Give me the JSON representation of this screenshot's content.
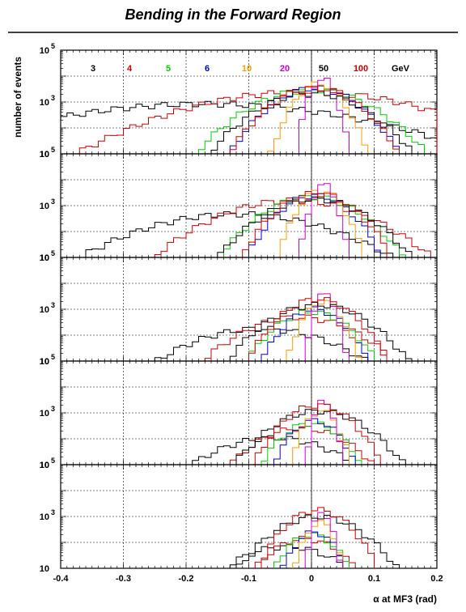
{
  "figure": {
    "title": "Bending in the Forward Region"
  },
  "chart_data": {
    "type": "histogram",
    "panels": 5,
    "xlabel": "α at MF3 (rad)",
    "ylabel": "number of events",
    "xlim": [
      -0.4,
      0.2
    ],
    "ylim": [
      10,
      100000
    ],
    "yscale": "log",
    "x_ticks": [
      "-0.4",
      "-0.3",
      "-0.2",
      "-0.1",
      "0",
      "0.1",
      "0.2"
    ],
    "y_tick_labels": [
      [
        "10",
        "5"
      ],
      [
        "10",
        "3"
      ],
      [
        "10",
        ""
      ]
    ],
    "grid": true,
    "legend_placement": "top of first panel",
    "legend_unit": "GeV",
    "series": [
      {
        "name": "3",
        "color": "#000000",
        "centers": [
          -0.17,
          -0.12,
          -0.08,
          -0.06,
          -0.04
        ],
        "sigmas": [
          0.15,
          0.09,
          0.07,
          0.06,
          0.05
        ],
        "peaks": [
          850,
          480,
          180,
          110,
          70
        ]
      },
      {
        "name": "4",
        "color": "#cc0000",
        "centers": [
          -0.01,
          -0.03,
          -0.02,
          -0.015,
          -0.01
        ],
        "sigmas": [
          0.11,
          0.07,
          0.055,
          0.045,
          0.035
        ],
        "peaks": [
          2500,
          1600,
          500,
          260,
          140
        ]
      },
      {
        "name": "5",
        "color": "#00cc00",
        "centers": [
          0.0,
          0.0,
          0.0,
          0.0,
          0.0
        ],
        "sigmas": [
          0.055,
          0.045,
          0.035,
          0.03,
          0.025
        ],
        "peaks": [
          3000,
          2200,
          800,
          400,
          200
        ]
      },
      {
        "name": "6",
        "color": "#0000cc",
        "centers": [
          0.005,
          0.005,
          0.005,
          0.005,
          0.005
        ],
        "sigmas": [
          0.04,
          0.033,
          0.028,
          0.024,
          0.02
        ],
        "peaks": [
          3500,
          2500,
          1000,
          500,
          250
        ]
      },
      {
        "name": "10",
        "color": "#ff9900",
        "centers": [
          0.012,
          0.015,
          0.018,
          0.015,
          0.013
        ],
        "sigmas": [
          0.022,
          0.02,
          0.018,
          0.016,
          0.014
        ],
        "peaks": [
          5000,
          4000,
          2000,
          1200,
          600
        ]
      },
      {
        "name": "20",
        "color": "#cc00cc",
        "centers": [
          0.018,
          0.02,
          0.022,
          0.02,
          0.018
        ],
        "sigmas": [
          0.012,
          0.011,
          0.01,
          0.009,
          0.009
        ],
        "peaks": [
          8000,
          6500,
          4000,
          3000,
          1500
        ]
      },
      {
        "name": "50",
        "color": "#000000",
        "centers": [
          0.0,
          0.005,
          0.01,
          0.012,
          0.01
        ],
        "sigmas": [
          0.05,
          0.048,
          0.046,
          0.044,
          0.042
        ],
        "peaks": [
          2200,
          1800,
          1500,
          1200,
          1000
        ]
      },
      {
        "name": "100",
        "color": "#cc0000",
        "centers": [
          0.005,
          0.008,
          0.01,
          0.01,
          0.01
        ],
        "sigmas": [
          0.04,
          0.036,
          0.034,
          0.032,
          0.03
        ],
        "peaks": [
          3500,
          3000,
          2500,
          2000,
          1800
        ]
      }
    ]
  }
}
